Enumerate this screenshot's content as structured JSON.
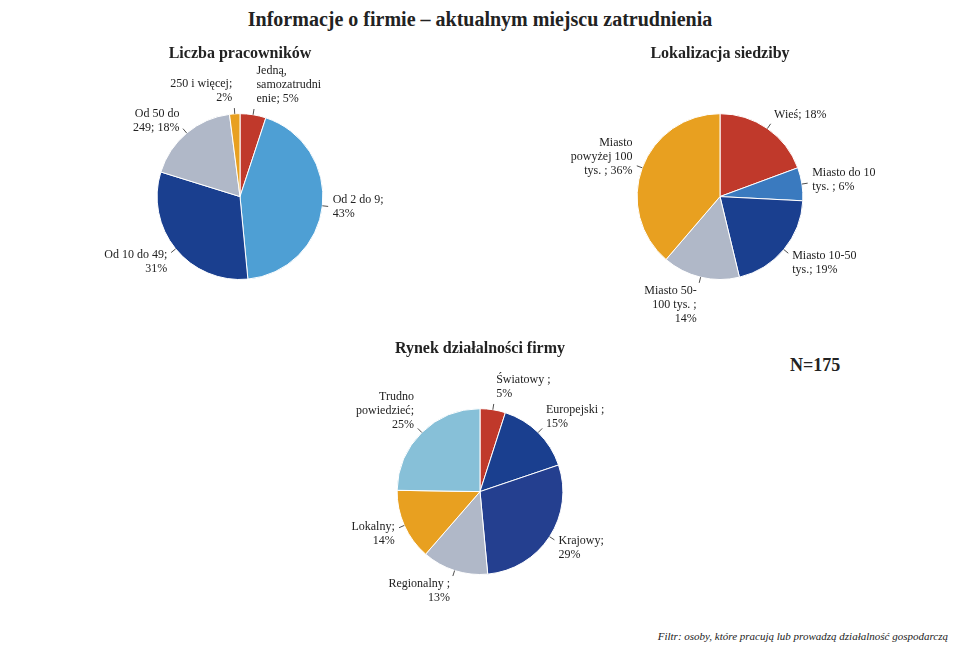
{
  "title": "Informacje o firmie – aktualnym miejscu zatrudnienia",
  "annotations": [
    "N=175",
    "Filtr: osoby, które pracują lub prowadzą działalność gospodarczą"
  ],
  "chart_data": [
    {
      "type": "pie",
      "title": "Liczba pracowników",
      "values": [
        5,
        43,
        31,
        18,
        2
      ],
      "value_labels": [
        "Jedną,\nsamozatrudni\nenie; 5%",
        "Od 2 do 9;\n43%",
        "Od 10 do 49;\n31%",
        "Od 50 do\n249; 18%",
        "250 i więcej;\n2%"
      ],
      "colors": [
        "#c0392b",
        "#4e9fd4",
        "#1a3f8f",
        "#b0b8c8",
        "#e8a020"
      ],
      "data_labels": true
    },
    {
      "type": "pie",
      "title": "Lokalizacja siedziby",
      "values": [
        18,
        6,
        19,
        14,
        36
      ],
      "value_labels": [
        "Wieś; 18%",
        "Miasto do 10\ntys. ; 6%",
        "Miasto 10-50\ntys.; 19%",
        "Miasto 50-\n100 tys. ;\n14%",
        "Miasto\npowyżej 100\ntys. ; 36%"
      ],
      "colors": [
        "#c0392b",
        "#3a7abf",
        "#1a3f8f",
        "#b0b8c8",
        "#e8a020"
      ],
      "data_labels": true
    },
    {
      "type": "pie",
      "title": "Rynek działalności firmy",
      "values": [
        5,
        15,
        29,
        13,
        14,
        25
      ],
      "value_labels": [
        "Światowy ;\n5%",
        "Europejski ;\n15%",
        "Krajowy;\n29%",
        "Regionalny ;\n13%",
        "Lokalny;\n14%",
        "Trudno\npowiedzieć;\n25%"
      ],
      "colors": [
        "#c0392b",
        "#1a3f8f",
        "#243f8f",
        "#b0b8c8",
        "#e8a020",
        "#87c0d8"
      ],
      "data_labels": true
    }
  ]
}
